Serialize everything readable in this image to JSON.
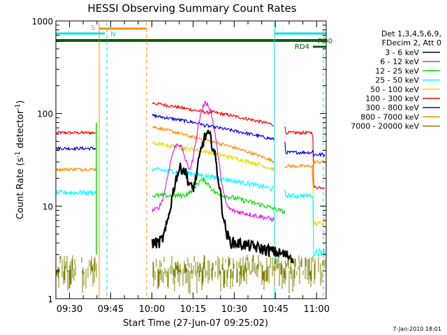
{
  "chart_data": {
    "type": "line",
    "title": "HESSI Observing Summary Count Rates",
    "xlabel": "Start Time (27-Jun-07 09:25:02)",
    "ylabel_main": "Count Rate (s",
    "ylabel_sup1": "-1",
    "ylabel_mid": " detector",
    "ylabel_sup2": "-1",
    "ylabel_end": ")",
    "yscale": "log",
    "x_ticks": [
      "09:30",
      "09:45",
      "10:00",
      "10:15",
      "10:30",
      "10:45",
      "11:00"
    ],
    "x_tick_minutes": [
      30,
      45,
      60,
      75,
      90,
      105,
      120
    ],
    "xlim_minutes": [
      25.03,
      123.5
    ],
    "y_ticks": [
      "1",
      "10",
      "100",
      "1000"
    ],
    "ylim": [
      1,
      1000
    ],
    "legend_header": [
      "Det 1,3,4,5,6,9,",
      "FDecim 2, Att 0"
    ],
    "legend_placement": "right",
    "series": [
      {
        "name": "3 - 6 keV",
        "color": "#000000"
      },
      {
        "name": "6 - 12 keV",
        "color": "#e020e0"
      },
      {
        "name": "12 - 25 keV",
        "color": "#00e000"
      },
      {
        "name": "25 - 50 keV",
        "color": "#00ffff"
      },
      {
        "name": "50 - 100 keV",
        "color": "#e0e000"
      },
      {
        "name": "100 - 300 keV",
        "color": "#ff0000"
      },
      {
        "name": "300 - 800 keV",
        "color": "#0000e0"
      },
      {
        "name": "800 - 7000 keV",
        "color": "#ff8c00"
      },
      {
        "name": "7000 - 20000 keV",
        "color": "#808000"
      }
    ],
    "flag_labels": {
      "s": "S",
      "n": "N",
      "rd0": "RD0",
      "rd4": "RD4"
    },
    "footer_date": "7-Jan-2010 18:01"
  }
}
